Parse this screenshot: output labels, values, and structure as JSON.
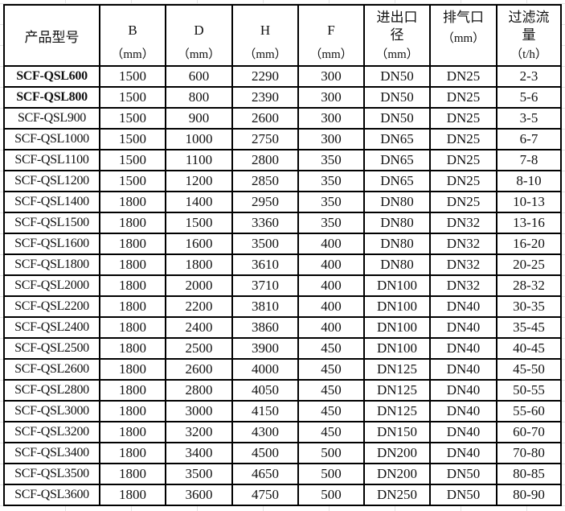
{
  "table": {
    "headers": [
      {
        "label": "产品型号",
        "unit": ""
      },
      {
        "label": "B",
        "unit": "（mm）"
      },
      {
        "label": "D",
        "unit": "（mm）"
      },
      {
        "label": "H",
        "unit": "（mm）"
      },
      {
        "label": "F",
        "unit": "（mm）"
      },
      {
        "label": "进出口径",
        "unit": "（mm）"
      },
      {
        "label": "排气口",
        "unit": "（mm）"
      },
      {
        "label": "过滤流量",
        "unit": "（t/h）"
      }
    ],
    "rows": [
      [
        "SCF-QSL600",
        "1500",
        "600",
        "2290",
        "300",
        "DN50",
        "DN25",
        "2-3"
      ],
      [
        "SCF-QSL800",
        "1500",
        "800",
        "2390",
        "300",
        "DN50",
        "DN25",
        "5-6"
      ],
      [
        "SCF-QSL900",
        "1500",
        "900",
        "2600",
        "300",
        "DN50",
        "DN25",
        "3-5"
      ],
      [
        "SCF-QSL1000",
        "1500",
        "1000",
        "2750",
        "300",
        "DN65",
        "DN25",
        "6-7"
      ],
      [
        "SCF-QSL1100",
        "1500",
        "1100",
        "2800",
        "350",
        "DN65",
        "DN25",
        "7-8"
      ],
      [
        "SCF-QSL1200",
        "1500",
        "1200",
        "2850",
        "350",
        "DN65",
        "DN25",
        "8-10"
      ],
      [
        "SCF-QSL1400",
        "1800",
        "1400",
        "2950",
        "350",
        "DN80",
        "DN25",
        "10-13"
      ],
      [
        "SCF-QSL1500",
        "1800",
        "1500",
        "3360",
        "350",
        "DN80",
        "DN32",
        "13-16"
      ],
      [
        "SCF-QSL1600",
        "1800",
        "1600",
        "3500",
        "400",
        "DN80",
        "DN32",
        "16-20"
      ],
      [
        "SCF-QSL1800",
        "1800",
        "1800",
        "3610",
        "400",
        "DN80",
        "DN32",
        "20-25"
      ],
      [
        "SCF-QSL2000",
        "1800",
        "2000",
        "3710",
        "400",
        "DN100",
        "DN32",
        "28-32"
      ],
      [
        "SCF-QSL2200",
        "1800",
        "2200",
        "3810",
        "400",
        "DN100",
        "DN40",
        "30-35"
      ],
      [
        "SCF-QSL2400",
        "1800",
        "2400",
        "3860",
        "400",
        "DN100",
        "DN40",
        "35-45"
      ],
      [
        "SCF-QSL2500",
        "1800",
        "2500",
        "3900",
        "450",
        "DN100",
        "DN40",
        "40-45"
      ],
      [
        "SCF-QSL2600",
        "1800",
        "2600",
        "4000",
        "450",
        "DN125",
        "DN40",
        "45-50"
      ],
      [
        "SCF-QSL2800",
        "1800",
        "2800",
        "4050",
        "450",
        "DN125",
        "DN40",
        "50-55"
      ],
      [
        "SCF-QSL3000",
        "1800",
        "3000",
        "4150",
        "450",
        "DN125",
        "DN40",
        "55-60"
      ],
      [
        "SCF-QSL3200",
        "1800",
        "3200",
        "4300",
        "450",
        "DN150",
        "DN40",
        "60-70"
      ],
      [
        "SCF-QSL3400",
        "1800",
        "3400",
        "4500",
        "500",
        "DN200",
        "DN40",
        "70-80"
      ],
      [
        "SCF-QSL3500",
        "1800",
        "3500",
        "4650",
        "500",
        "DN200",
        "DN50",
        "80-85"
      ],
      [
        "SCF-QSL3600",
        "1800",
        "3600",
        "4750",
        "500",
        "DN250",
        "DN50",
        "80-90"
      ]
    ]
  }
}
